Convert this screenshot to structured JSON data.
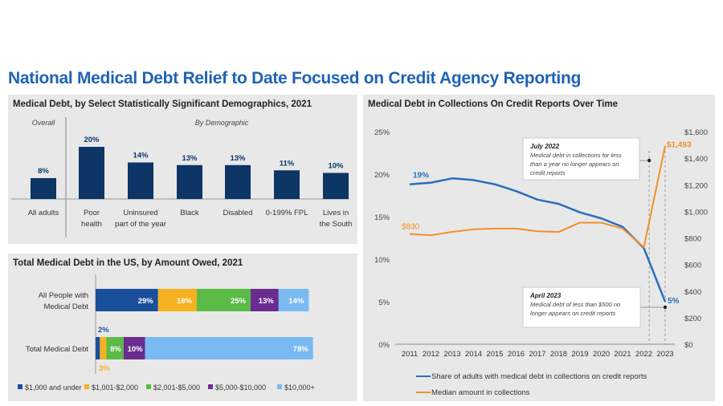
{
  "page_title": "National Medical Debt Relief to Date Focused on Credit Agency Reporting",
  "colors": {
    "navy": "#0d3566",
    "title_blue": "#1f63b5",
    "blue_line": "#2a6fbd",
    "orange": "#f0902a",
    "c1": "#1a4f9c",
    "c2": "#f5b120",
    "c3": "#5cba47",
    "c4": "#6b2c91",
    "c5": "#79baf2"
  },
  "chart_data": [
    {
      "type": "bar",
      "title": "Medical Debt, by Select Statistically Significant Demographics, 2021",
      "group_labels": {
        "overall": "Overall",
        "by_demographic": "By Demographic"
      },
      "categories": [
        [
          "All adults"
        ],
        [
          "Poor",
          "health"
        ],
        [
          "Uninsured",
          "part of the year"
        ],
        [
          "Black"
        ],
        [
          "Disabled"
        ],
        [
          "0-199% FPL"
        ],
        [
          "Lives in",
          "the South"
        ]
      ],
      "values": [
        8,
        20,
        14,
        13,
        13,
        11,
        10
      ],
      "value_labels": [
        "8%",
        "20%",
        "14%",
        "13%",
        "13%",
        "11%",
        "10%"
      ],
      "unit": "%"
    },
    {
      "type": "bar",
      "orientation": "horizontal-stacked",
      "title": "Total Medical Debt in the US, by Amount Owed, 2021",
      "categories": [
        [
          "All People with",
          "Medical Debt"
        ],
        [
          "Total Medical Debt"
        ]
      ],
      "series": [
        {
          "name": "$1,000 and under",
          "values": [
            29,
            2
          ],
          "labels": [
            "29%",
            "2%"
          ]
        },
        {
          "name": "$1,001-$2,000",
          "values": [
            18,
            3
          ],
          "labels": [
            "18%",
            "3%"
          ]
        },
        {
          "name": "$2,001-$5,000",
          "values": [
            25,
            8
          ],
          "labels": [
            "25%",
            "8%"
          ]
        },
        {
          "name": "$5,000-$10,000",
          "values": [
            13,
            10
          ],
          "labels": [
            "13%",
            "10%"
          ]
        },
        {
          "name": "$10,000+",
          "values": [
            14,
            78
          ],
          "labels": [
            "14%",
            "78%"
          ]
        }
      ],
      "legend": "bottom"
    },
    {
      "type": "line",
      "title": "Medical Debt in Collections On Credit Reports Over Time",
      "x": [
        2011,
        2012,
        2013,
        2014,
        2015,
        2016,
        2017,
        2018,
        2019,
        2020,
        2021,
        2022,
        2023
      ],
      "y_left": {
        "ticks": [
          "0%",
          "5%",
          "10%",
          "15%",
          "20%",
          "25%"
        ],
        "range": [
          0,
          25
        ]
      },
      "y_right": {
        "ticks": [
          "$0",
          "$200",
          "$400",
          "$600",
          "$800",
          "$1,000",
          "$1,200",
          "$1,400",
          "$1,600"
        ],
        "range": [
          0,
          1600
        ]
      },
      "series": [
        {
          "name": "Share of adults with medical debt in collections on credit reports",
          "axis": "left",
          "values": [
            18.8,
            19.0,
            19.5,
            19.3,
            18.8,
            18.0,
            17.0,
            16.5,
            15.5,
            14.8,
            13.8,
            11.3,
            5.0
          ],
          "start_label": "19%",
          "end_label": "5%"
        },
        {
          "name": "Median amount in collections",
          "axis": "right",
          "values": [
            830,
            820,
            845,
            865,
            870,
            870,
            850,
            845,
            915,
            915,
            870,
            730,
            1493
          ],
          "start_label": "$830",
          "end_label": "$1,493"
        }
      ],
      "annotations": [
        {
          "title": "July 2022",
          "lines": [
            "Medical debt in collections for less",
            "than a year no longer appears on",
            "credit reports"
          ]
        },
        {
          "title": "April 2023",
          "lines": [
            "Medical debt of less than $500 no",
            "longer appears on credit reports"
          ]
        }
      ],
      "legend": "bottom"
    }
  ]
}
